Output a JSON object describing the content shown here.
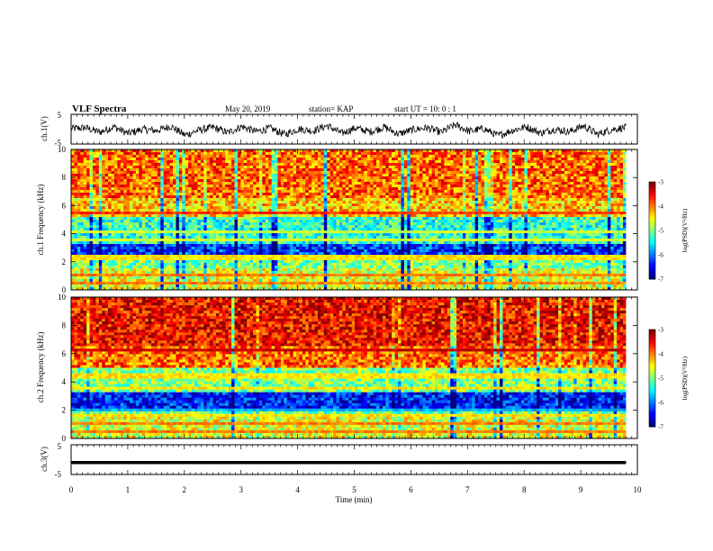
{
  "header": {
    "title": "VLF Spectra",
    "date": "May 20, 2019",
    "station": "station= KAP",
    "start": "start  UT =   10: 0  : 1"
  },
  "chart_data": [
    {
      "type": "line",
      "ylabel": "ch.1(V)",
      "ylim": [
        -5,
        5
      ],
      "yticklabels": [
        "5",
        "-5"
      ],
      "xlim": [
        0,
        10
      ],
      "note": "noisy waveform around 0 V",
      "approx_levels": [
        0.2,
        0.5,
        -1.0,
        0.8,
        -1.5,
        0.0,
        -0.5,
        1.0,
        -2.0,
        -0.3,
        0.6,
        -1.2,
        0.9,
        -0.8,
        0.3,
        -1.8,
        0.1,
        -0.6,
        1.2,
        -1.4,
        0.4,
        -0.9,
        0.7,
        -1.6,
        -0.2,
        0.5,
        -1.1,
        1.5,
        -0.7,
        0.2,
        -2.2,
        -0.4,
        0.8,
        -1.3,
        0.0,
        -0.9,
        1.1,
        -1.7,
        -0.1,
        0.6
      ]
    },
    {
      "type": "heatmap",
      "ylabel": "ch.1 Frequency (kHz)",
      "ylim": [
        0,
        10
      ],
      "yticklabels": [
        "0",
        "2",
        "4",
        "6",
        "8",
        "10"
      ],
      "xlim": [
        0,
        10
      ],
      "colorbar": {
        "label": "log(PSD)(V²/Hz)",
        "min": -7,
        "max": -3,
        "ticklabels": [
          "-3",
          "-4",
          "-5",
          "-6",
          "-7"
        ]
      },
      "bands": [
        {
          "from": 0,
          "to": 1.5,
          "level": -4.6
        },
        {
          "from": 1.5,
          "to": 2.5,
          "level": -5.0
        },
        {
          "from": 2.5,
          "to": 3.3,
          "level": -6.3
        },
        {
          "from": 3.3,
          "to": 5.2,
          "level": -5.3
        },
        {
          "from": 5.2,
          "to": 6.5,
          "level": -4.3
        },
        {
          "from": 6.5,
          "to": 10,
          "level": -3.9
        }
      ],
      "lines_khz": [
        0.5,
        1.0,
        2.2,
        2.4,
        3.6,
        4.2,
        5.5
      ]
    },
    {
      "type": "heatmap",
      "ylabel": "ch.2 Frequency (kHz)",
      "ylim": [
        0,
        10
      ],
      "yticklabels": [
        "0",
        "2",
        "4",
        "6",
        "8",
        "10"
      ],
      "xlim": [
        0,
        10
      ],
      "colorbar": {
        "label": "log(PSD)(V²/Hz)",
        "min": -7,
        "max": -3,
        "ticklabels": [
          "-3",
          "-4",
          "-5",
          "-6",
          "-7"
        ]
      },
      "bands": [
        {
          "from": 0,
          "to": 1.5,
          "level": -4.6
        },
        {
          "from": 1.5,
          "to": 2.0,
          "level": -5.0
        },
        {
          "from": 2.0,
          "to": 3.2,
          "level": -6.4
        },
        {
          "from": 3.2,
          "to": 5.0,
          "level": -5.0
        },
        {
          "from": 5.0,
          "to": 6.5,
          "level": -3.9
        },
        {
          "from": 6.5,
          "to": 10,
          "level": -3.5
        }
      ],
      "lines_khz": [
        0.5,
        1.0,
        1.6,
        2.0,
        3.5,
        4.4,
        6.3
      ]
    },
    {
      "type": "line",
      "ylabel": "ch.3(V)",
      "ylim": [
        -5,
        5
      ],
      "yticklabels": [
        "5",
        "-5"
      ],
      "xlim": [
        0,
        10
      ],
      "xlabel": "Time  (min)",
      "xticklabels": [
        "0",
        "1",
        "2",
        "3",
        "4",
        "5",
        "6",
        "7",
        "8",
        "9",
        "10"
      ],
      "constant_value": -1
    }
  ]
}
